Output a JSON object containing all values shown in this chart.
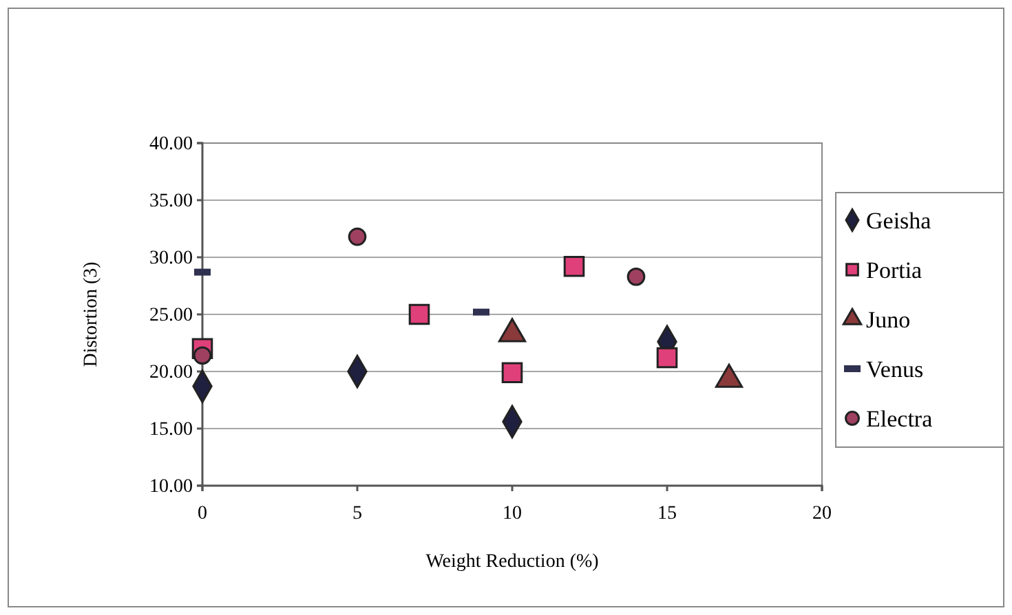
{
  "chart_data": {
    "type": "scatter",
    "xlabel": "Weight Reduction (%)",
    "ylabel": "Distortion (3)",
    "xlim": [
      0,
      20
    ],
    "xticks": [
      0,
      5,
      10,
      15,
      20
    ],
    "ylim": [
      10,
      40
    ],
    "yticks": [
      {
        "value": 10,
        "label": "10.00"
      },
      {
        "value": 15,
        "label": "15.00"
      },
      {
        "value": 20,
        "label": "20.00"
      },
      {
        "value": 25,
        "label": "25.00"
      },
      {
        "value": 30,
        "label": "30.00"
      },
      {
        "value": 35,
        "label": "35.00"
      },
      {
        "value": 40,
        "label": "40.00"
      }
    ],
    "grid": "y",
    "legend": "right",
    "series": [
      {
        "name": "Geisha",
        "color": "#1f1f3f",
        "marker": "diamond",
        "x": [
          0,
          5,
          10,
          15
        ],
        "values": [
          18.7,
          20.0,
          15.6,
          22.6
        ]
      },
      {
        "name": "Portia",
        "color": "#e0407a",
        "marker": "square",
        "x": [
          0,
          7,
          10,
          12,
          15
        ],
        "values": [
          22.0,
          25.0,
          19.9,
          29.2,
          21.2
        ]
      },
      {
        "name": "Juno",
        "color": "#8a3a3a",
        "marker": "triangle",
        "x": [
          10,
          17
        ],
        "values": [
          23.3,
          19.3
        ]
      },
      {
        "name": "Venus",
        "color": "#303050",
        "x": [
          0,
          9
        ],
        "values": [
          28.7,
          25.2
        ]
      },
      {
        "name": "Electra",
        "color": "#a04060",
        "marker": "circle",
        "x": [
          0,
          5,
          14
        ],
        "values": [
          21.4,
          31.8,
          28.3
        ]
      }
    ]
  }
}
